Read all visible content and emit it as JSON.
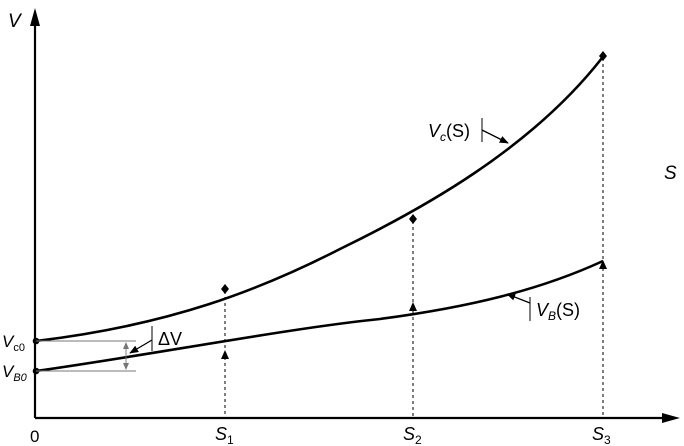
{
  "axes": {
    "x_label": "S",
    "y_label": "V",
    "origin": "0"
  },
  "x_ticks": [
    {
      "main": "S",
      "sub": "1"
    },
    {
      "main": "S",
      "sub": "2"
    },
    {
      "main": "S",
      "sub": "3"
    }
  ],
  "y_ticks": [
    {
      "main": "V",
      "sub": "c0"
    },
    {
      "main": "V",
      "sub": "B0"
    }
  ],
  "curves": [
    {
      "main": "V",
      "sub": "c",
      "arg": "(S)",
      "marker": "diamond"
    },
    {
      "main": "V",
      "sub": "B",
      "arg": "(S)",
      "marker": "triangle"
    }
  ],
  "gap_label": "ΔV"
}
